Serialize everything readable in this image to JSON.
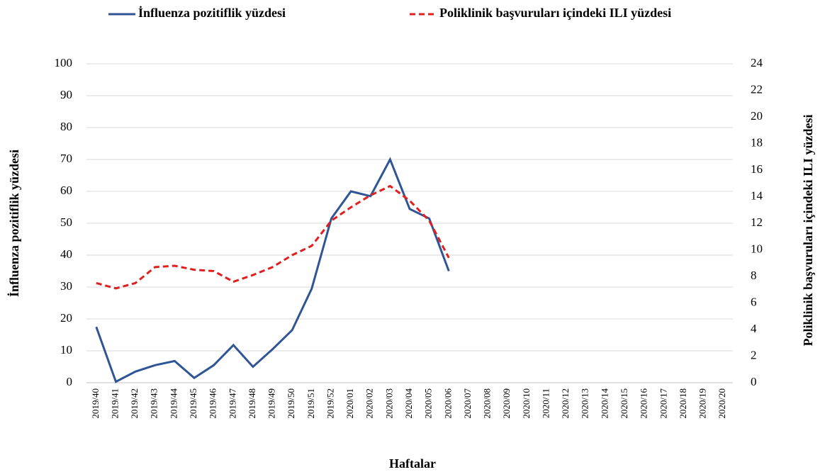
{
  "chart_data": {
    "type": "line",
    "legend": "top",
    "grid": true,
    "x_label": "Haftalar",
    "y_label": "İnfluenza pozitiflik yüzdesi",
    "y2_label": "Poliklinik başvuruları içindeki  ILI yüzdesi",
    "categories": [
      "2019/40",
      "2019/41",
      "2019/42",
      "2019/43",
      "2019/44",
      "2019/45",
      "2019/46",
      "2019/47",
      "2019/48",
      "2019/49",
      "2019/50",
      "2019/51",
      "2019/52",
      "2020/01",
      "2020/02",
      "2020/03",
      "2020/04",
      "2020/05",
      "2020/06",
      "2020/07",
      "2020/08",
      "2020/09",
      "2020/10",
      "2020/11",
      "2020/12",
      "2020/13",
      "2020/14",
      "2020/15",
      "2020/16",
      "2020/17",
      "2020/18",
      "2020/19",
      "2020/20"
    ],
    "series": [
      {
        "name": "İnfluenza pozitiflik yüzdesi",
        "color": "#2f5597",
        "linestyle": "solid",
        "axis": "y",
        "values": [
          17.5,
          0.3,
          3.5,
          5.5,
          6.8,
          1.5,
          5.5,
          11.8,
          5,
          10.5,
          16.5,
          29.5,
          51.5,
          60,
          58.5,
          70,
          54.5,
          51.5,
          35,
          null,
          null,
          null,
          null,
          null,
          null,
          null,
          null,
          null,
          null,
          null,
          null,
          null,
          null
        ]
      },
      {
        "name": "Poliklinik başvuruları içindeki  ILI yüzdesi",
        "color": "#e02020",
        "linestyle": "dashed",
        "axis": "y2",
        "values": [
          7.5,
          7.1,
          7.5,
          8.7,
          8.8,
          8.5,
          8.4,
          7.6,
          8.1,
          8.7,
          9.6,
          10.3,
          12.2,
          13.2,
          14.1,
          14.8,
          13.7,
          12.2,
          9.4,
          null,
          null,
          null,
          null,
          null,
          null,
          null,
          null,
          null,
          null,
          null,
          null,
          null,
          null
        ]
      }
    ],
    "ylim": [
      0,
      100
    ],
    "yticks": [
      0,
      10,
      20,
      30,
      40,
      50,
      60,
      70,
      80,
      90,
      100
    ],
    "y2lim": [
      0,
      24
    ],
    "y2ticks": [
      0,
      2,
      4,
      6,
      8,
      10,
      12,
      14,
      16,
      18,
      20,
      22,
      24
    ]
  }
}
